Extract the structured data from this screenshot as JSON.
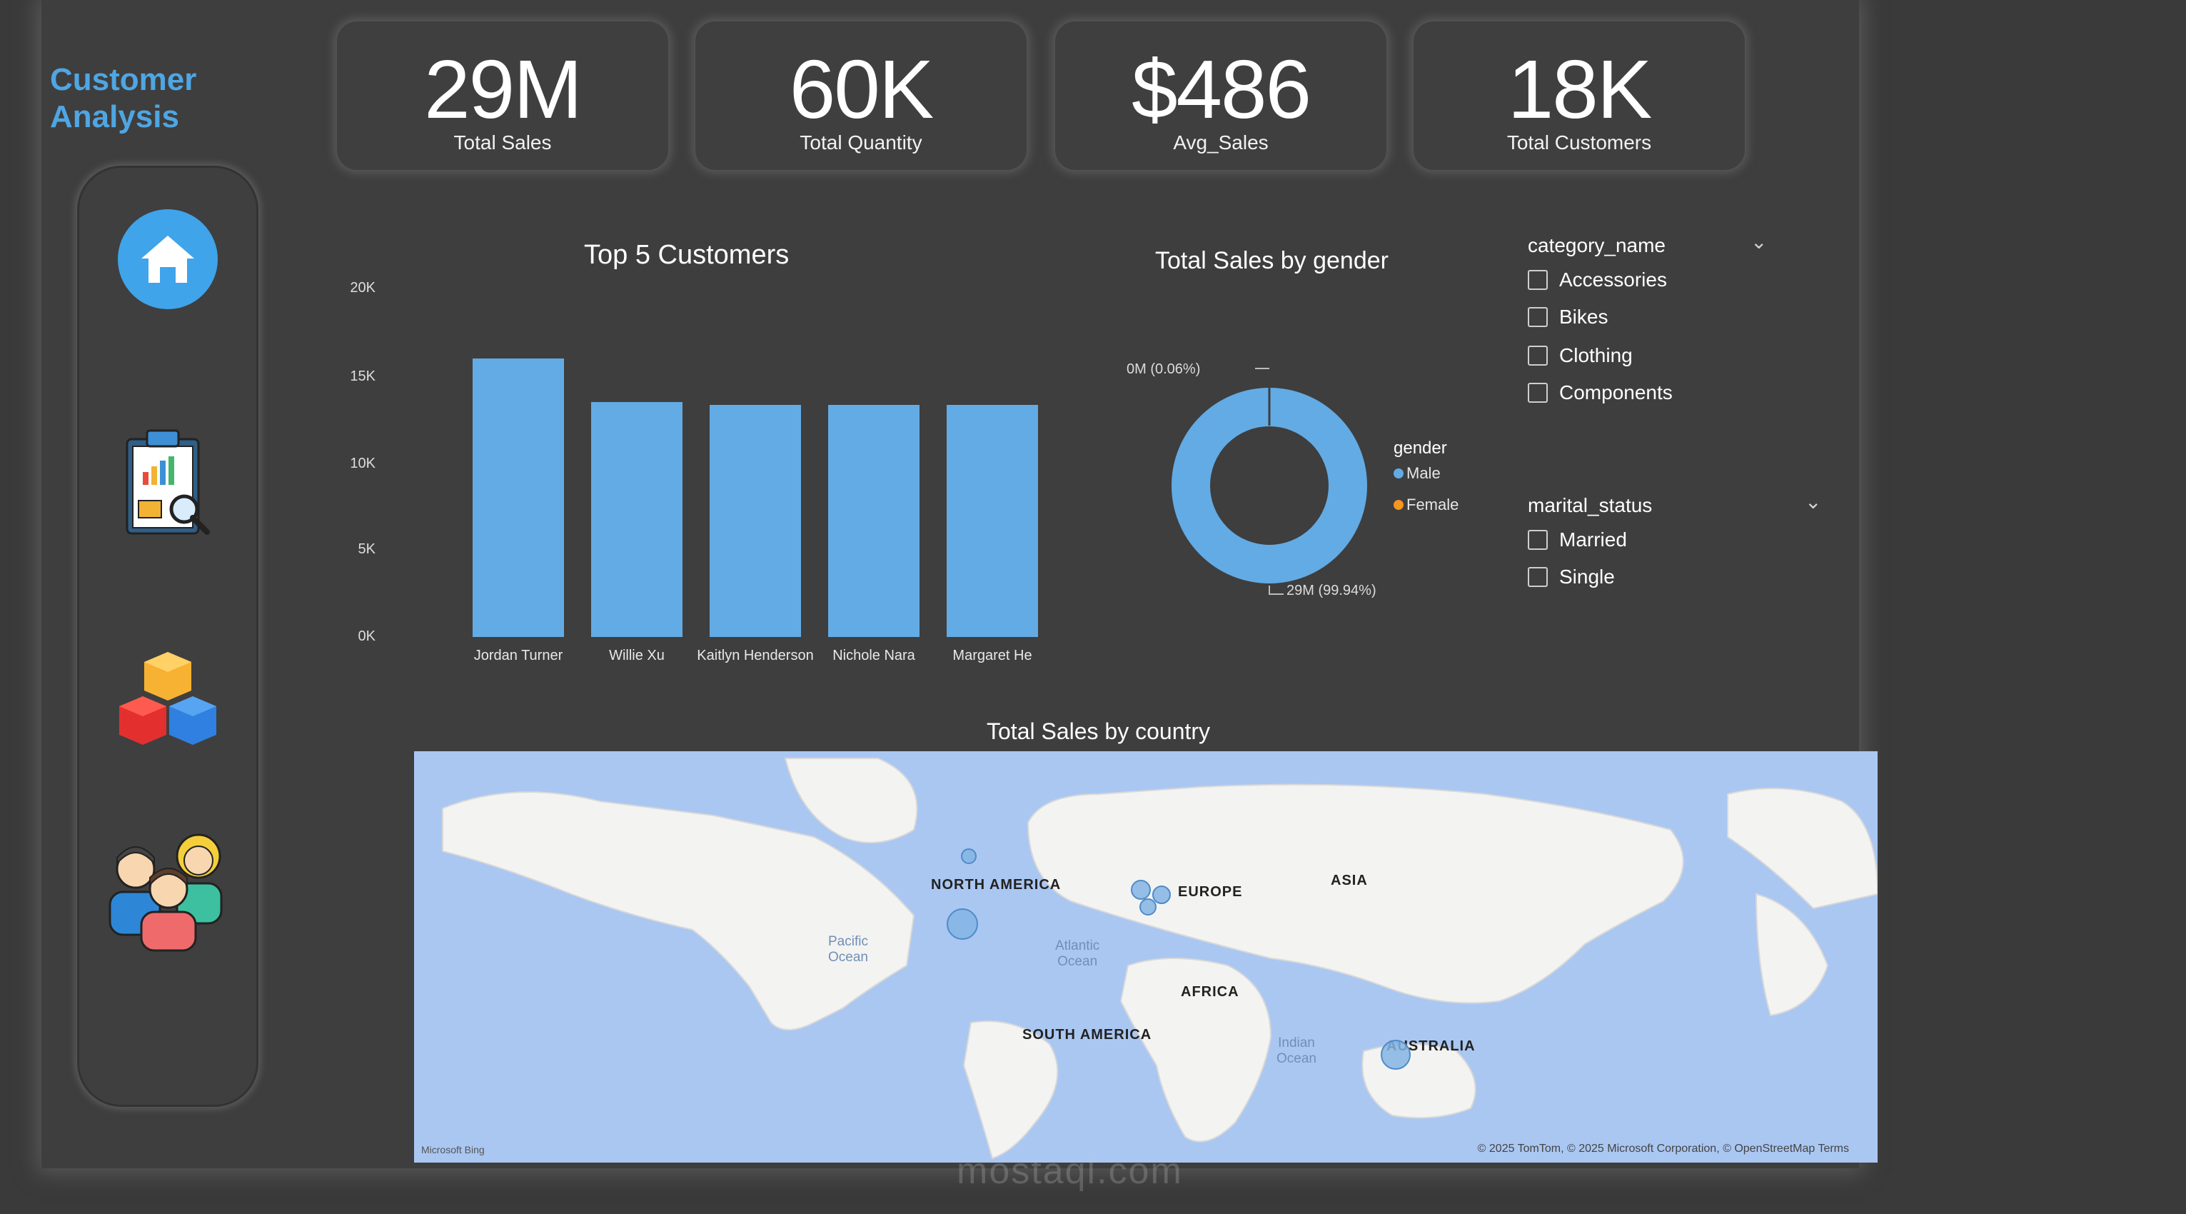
{
  "sidebar": {
    "brand_line1": "Customer",
    "brand_line2": "Analysis",
    "items": [
      {
        "icon": "home-icon"
      },
      {
        "icon": "report-clipboard-icon"
      },
      {
        "icon": "product-cubes-icon"
      },
      {
        "icon": "customers-group-icon"
      }
    ]
  },
  "kpis": [
    {
      "value": "29M",
      "label": "Total Sales"
    },
    {
      "value": "60K",
      "label": "Total Quantity"
    },
    {
      "value": "$486",
      "label": "Avg_Sales"
    },
    {
      "value": "18K",
      "label": "Total Customers"
    }
  ],
  "bar_chart": {
    "title": "Top 5 Customers",
    "yticks": [
      "20K",
      "15K",
      "10K",
      "5K",
      "0K"
    ],
    "categories": [
      "Jordan Turner",
      "Willie Xu",
      "Kaitlyn Henderson",
      "Nichole Nara",
      "Margaret He"
    ]
  },
  "donut_chart": {
    "title": "Total Sales by gender",
    "legend_title": "gender",
    "legend": [
      "Male",
      "Female"
    ],
    "label_small": "0M (0.06%)",
    "label_large": "29M (99.94%)"
  },
  "slicers": {
    "category": {
      "title": "category_name",
      "options": [
        "Accessories",
        "Bikes",
        "Clothing",
        "Components"
      ]
    },
    "marital": {
      "title": "marital_status",
      "options": [
        "Married",
        "Single"
      ]
    }
  },
  "map": {
    "title": "Total Sales by country",
    "continents": [
      "NORTH AMERICA",
      "EUROPE",
      "ASIA",
      "AFRICA",
      "SOUTH AMERICA",
      "AUSTRALIA"
    ],
    "oceans": [
      "Pacific\nOcean",
      "Atlantic\nOcean",
      "Indian\nOcean"
    ],
    "footer_left": "Microsoft Bing",
    "footer_right": "© 2025 TomTom, © 2025 Microsoft Corporation, © OpenStreetMap  Terms"
  },
  "watermark": "mostaql.com",
  "chart_data": [
    {
      "type": "bar",
      "title": "Top 5 Customers",
      "categories": [
        "Jordan Turner",
        "Willie Xu",
        "Kaitlyn Henderson",
        "Nichole Nara",
        "Margaret He"
      ],
      "values": [
        16000,
        13500,
        13300,
        13300,
        13300
      ],
      "ylim": [
        0,
        20000
      ]
    },
    {
      "type": "pie",
      "title": "Total Sales by gender",
      "categories": [
        "Male",
        "Female"
      ],
      "values": [
        99.94,
        0.06
      ],
      "colors": [
        "#63abe4",
        "#f5961f"
      ]
    }
  ],
  "colors": {
    "accent": "#4fa6e3",
    "bar": "#63abe4",
    "female": "#f5961f",
    "background": "#3e3e3e"
  }
}
